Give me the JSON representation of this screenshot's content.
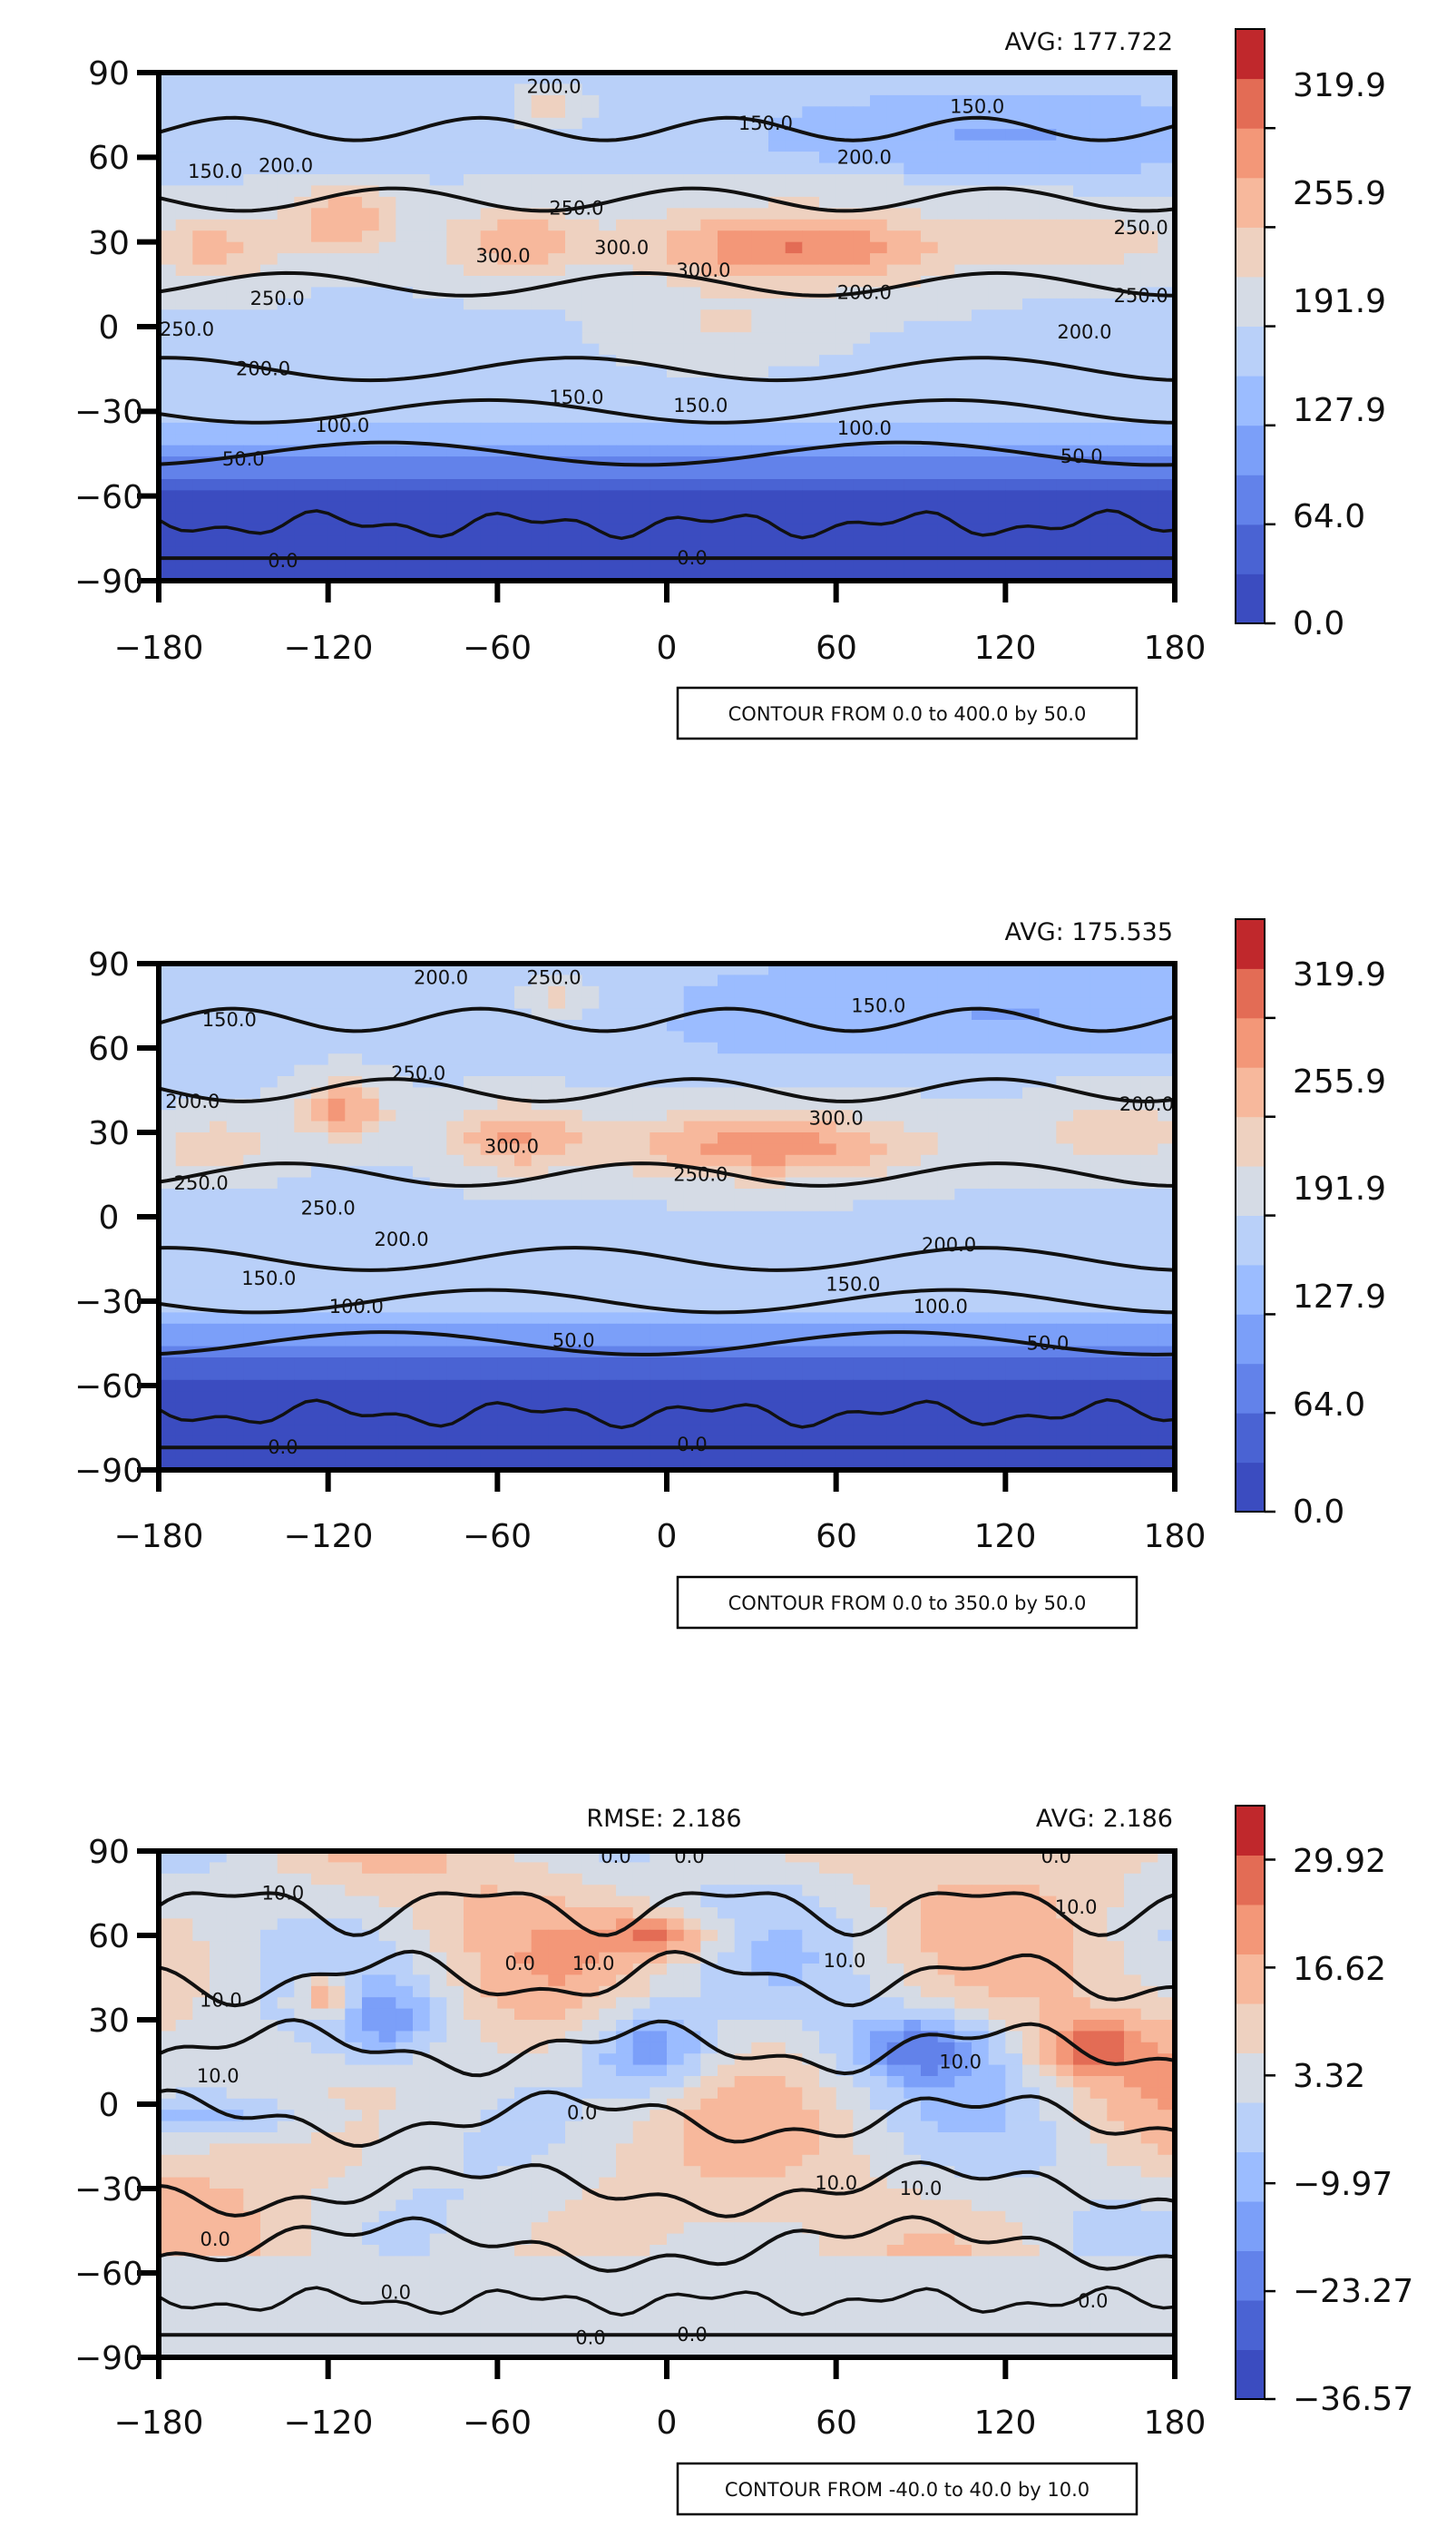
{
  "colors": {
    "colormap": "coolwarm",
    "ramp": [
      "#3b4cc0",
      "#4a63d3",
      "#6282ea",
      "#7b9ff9",
      "#9bbcff",
      "#b9d0f9",
      "#d5dbe5",
      "#eed1c0",
      "#f7b89c",
      "#f39778",
      "#e36c55",
      "#c0282c"
    ],
    "contour_line": "#111111",
    "land": "#d9d9d9"
  },
  "chart_data": [
    {
      "type": "heatmap",
      "title": "",
      "xlabel": "",
      "ylabel": "",
      "xlim": [
        -180,
        180
      ],
      "ylim": [
        -90,
        90
      ],
      "x_ticks": [
        "−180",
        "−120",
        "−60",
        "0",
        "60",
        "120",
        "180"
      ],
      "y_ticks": [
        "90",
        "60",
        "30",
        "0",
        "−30",
        "−60",
        "−90"
      ],
      "stats": {
        "left": "",
        "right": "AVG: 177.722"
      },
      "colorbar": {
        "range": [
          0.0,
          383.9
        ],
        "levels": 12,
        "tick_values": [
          0.0,
          64.0,
          127.9,
          191.9,
          255.9,
          319.9
        ],
        "tick_labels": [
          "0.0",
          "64.0",
          "127.9",
          "191.9",
          "255.9",
          "319.9"
        ]
      },
      "contour_note": "CONTOUR FROM 0.0 to 400.0 by 50.0",
      "contour_labels": [
        {
          "text": "200.0",
          "lon": -40,
          "lat": 85
        },
        {
          "text": "150.0",
          "lon": 110,
          "lat": 78
        },
        {
          "text": "150.0",
          "lon": 35,
          "lat": 72
        },
        {
          "text": "150.0",
          "lon": -160,
          "lat": 55
        },
        {
          "text": "200.0",
          "lon": -135,
          "lat": 57
        },
        {
          "text": "200.0",
          "lon": 70,
          "lat": 60
        },
        {
          "text": "250.0",
          "lon": -32,
          "lat": 42
        },
        {
          "text": "300.0",
          "lon": -58,
          "lat": 25
        },
        {
          "text": "300.0",
          "lon": -16,
          "lat": 28
        },
        {
          "text": "300.0",
          "lon": 13,
          "lat": 20
        },
        {
          "text": "200.0",
          "lon": 70,
          "lat": 12
        },
        {
          "text": "200.0",
          "lon": 148,
          "lat": -2
        },
        {
          "text": "250.0",
          "lon": 168,
          "lat": 35
        },
        {
          "text": "250.0",
          "lon": 168,
          "lat": 11
        },
        {
          "text": "250.0",
          "lon": -138,
          "lat": 10
        },
        {
          "text": "250.0",
          "lon": -170,
          "lat": -1
        },
        {
          "text": "200.0",
          "lon": -143,
          "lat": -15
        },
        {
          "text": "150.0",
          "lon": -32,
          "lat": -25
        },
        {
          "text": "150.0",
          "lon": 12,
          "lat": -28
        },
        {
          "text": "100.0",
          "lon": -115,
          "lat": -35
        },
        {
          "text": "100.0",
          "lon": 70,
          "lat": -36
        },
        {
          "text": "50.0",
          "lon": -150,
          "lat": -47
        },
        {
          "text": "50.0",
          "lon": 147,
          "lat": -46
        },
        {
          "text": "0.0",
          "lon": -136,
          "lat": -83
        },
        {
          "text": "0.0",
          "lon": 9,
          "lat": -82
        }
      ]
    },
    {
      "type": "heatmap",
      "title": "",
      "xlabel": "",
      "ylabel": "",
      "xlim": [
        -180,
        180
      ],
      "ylim": [
        -90,
        90
      ],
      "x_ticks": [
        "−180",
        "−120",
        "−60",
        "0",
        "60",
        "120",
        "180"
      ],
      "y_ticks": [
        "90",
        "60",
        "30",
        "0",
        "−30",
        "−60",
        "−90"
      ],
      "stats": {
        "left": "",
        "right": "AVG: 175.535"
      },
      "colorbar": {
        "range": [
          0.0,
          383.9
        ],
        "levels": 12,
        "tick_values": [
          0.0,
          64.0,
          127.9,
          191.9,
          255.9,
          319.9
        ],
        "tick_labels": [
          "0.0",
          "64.0",
          "127.9",
          "191.9",
          "255.9",
          "319.9"
        ]
      },
      "contour_note": "CONTOUR FROM 0.0 to 350.0 by 50.0",
      "contour_labels": [
        {
          "text": "200.0",
          "lon": -80,
          "lat": 85
        },
        {
          "text": "250.0",
          "lon": -40,
          "lat": 85
        },
        {
          "text": "150.0",
          "lon": -155,
          "lat": 70
        },
        {
          "text": "150.0",
          "lon": 75,
          "lat": 75
        },
        {
          "text": "200.0",
          "lon": -168,
          "lat": 41
        },
        {
          "text": "250.0",
          "lon": -88,
          "lat": 51
        },
        {
          "text": "300.0",
          "lon": -55,
          "lat": 25
        },
        {
          "text": "300.0",
          "lon": 60,
          "lat": 35
        },
        {
          "text": "250.0",
          "lon": 12,
          "lat": 15
        },
        {
          "text": "200.0",
          "lon": 170,
          "lat": 40
        },
        {
          "text": "250.0",
          "lon": -165,
          "lat": 12
        },
        {
          "text": "250.0",
          "lon": -120,
          "lat": 3
        },
        {
          "text": "200.0",
          "lon": -94,
          "lat": -8
        },
        {
          "text": "200.0",
          "lon": 100,
          "lat": -10
        },
        {
          "text": "150.0",
          "lon": -141,
          "lat": -22
        },
        {
          "text": "150.0",
          "lon": 66,
          "lat": -24
        },
        {
          "text": "100.0",
          "lon": -110,
          "lat": -32
        },
        {
          "text": "100.0",
          "lon": 97,
          "lat": -32
        },
        {
          "text": "50.0",
          "lon": -33,
          "lat": -44
        },
        {
          "text": "50.0",
          "lon": 135,
          "lat": -45
        },
        {
          "text": "0.0",
          "lon": -136,
          "lat": -82
        },
        {
          "text": "0.0",
          "lon": 9,
          "lat": -81
        }
      ]
    },
    {
      "type": "heatmap",
      "title": "",
      "xlabel": "",
      "ylabel": "",
      "xlim": [
        -180,
        180
      ],
      "ylim": [
        -90,
        90
      ],
      "x_ticks": [
        "−180",
        "−120",
        "−60",
        "0",
        "60",
        "120",
        "180"
      ],
      "y_ticks": [
        "90",
        "60",
        "30",
        "0",
        "−30",
        "−60",
        "−90"
      ],
      "stats": {
        "left": "RMSE: 2.186",
        "right": "AVG: 2.186"
      },
      "colorbar": {
        "range": [
          -36.57,
          36.57
        ],
        "levels": 12,
        "tick_values": [
          -36.57,
          -23.27,
          -9.97,
          3.32,
          16.62,
          29.92
        ],
        "tick_labels": [
          "−36.57",
          "−23.27",
          "−9.97",
          "3.32",
          "16.62",
          "29.92"
        ]
      },
      "contour_note": "CONTOUR FROM -40.0 to 40.0 by 10.0",
      "contour_labels": [
        {
          "text": "0.0",
          "lon": -18,
          "lat": 88
        },
        {
          "text": "0.0",
          "lon": 8,
          "lat": 88
        },
        {
          "text": "0.0",
          "lon": 138,
          "lat": 88
        },
        {
          "text": "10.0",
          "lon": -136,
          "lat": 75
        },
        {
          "text": "10.0",
          "lon": 145,
          "lat": 70
        },
        {
          "text": "10.0",
          "lon": 63,
          "lat": 51
        },
        {
          "text": "0.0",
          "lon": -52,
          "lat": 50
        },
        {
          "text": "10.0",
          "lon": -26,
          "lat": 50
        },
        {
          "text": "10.0",
          "lon": -158,
          "lat": 37
        },
        {
          "text": "10.0",
          "lon": -159,
          "lat": 10
        },
        {
          "text": "10.0",
          "lon": 104,
          "lat": 15
        },
        {
          "text": "0.0",
          "lon": -30,
          "lat": -3
        },
        {
          "text": "10.0",
          "lon": 60,
          "lat": -28
        },
        {
          "text": "10.0",
          "lon": 90,
          "lat": -30
        },
        {
          "text": "0.0",
          "lon": -160,
          "lat": -48
        },
        {
          "text": "0.0",
          "lon": -96,
          "lat": -67
        },
        {
          "text": "0.0",
          "lon": 151,
          "lat": -70
        },
        {
          "text": "0.0",
          "lon": -27,
          "lat": -83
        },
        {
          "text": "0.0",
          "lon": 9,
          "lat": -82
        }
      ]
    }
  ]
}
